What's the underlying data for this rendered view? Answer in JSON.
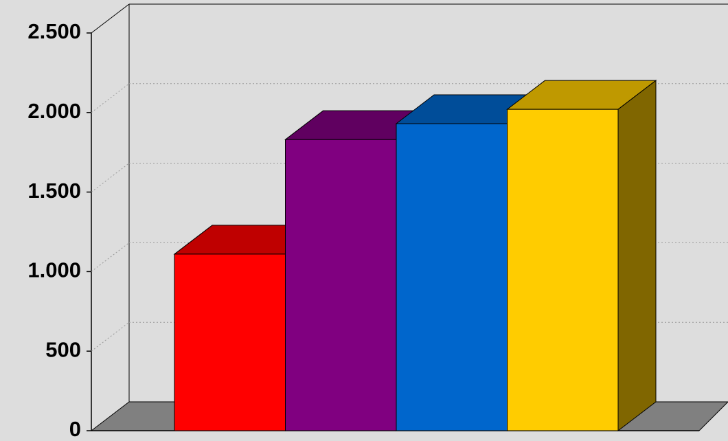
{
  "chart_data": {
    "type": "bar3d",
    "categories": [
      null,
      null,
      null,
      null
    ],
    "values": [
      1110,
      1830,
      1930,
      2020
    ],
    "colors": [
      "#ff0000",
      "#800080",
      "#0066cc",
      "#ffcc00"
    ],
    "ylim": [
      0,
      2500
    ],
    "yticks": [
      0,
      500,
      {
        "value": 1000,
        "label": "1.000"
      },
      {
        "value": 1500,
        "label": "1.500"
      },
      {
        "value": 2000,
        "label": "2.000"
      },
      {
        "value": 2500,
        "label": "2.500"
      }
    ],
    "grid": true
  }
}
